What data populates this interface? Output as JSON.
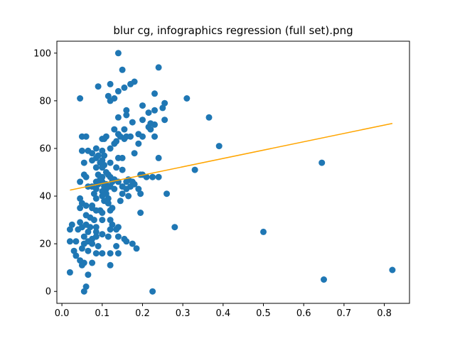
{
  "chart_data": {
    "type": "scatter",
    "title": "blur cg, infographics regression (full set).png",
    "xlabel": "",
    "ylabel": "",
    "xlim": [
      -0.0125,
      0.8625
    ],
    "ylim": [
      -5,
      105
    ],
    "xticks": [
      0.0,
      0.1,
      0.2,
      0.3,
      0.4,
      0.5,
      0.6,
      0.7,
      0.8
    ],
    "xtick_labels": [
      "0.0",
      "0.1",
      "0.2",
      "0.3",
      "0.4",
      "0.5",
      "0.6",
      "0.7",
      "0.8"
    ],
    "yticks": [
      0,
      20,
      40,
      60,
      80,
      100
    ],
    "ytick_labels": [
      "0",
      "20",
      "40",
      "60",
      "80",
      "100"
    ],
    "grid": false,
    "colors": {
      "points": "#1f77b4",
      "regression_line": "#ffa500"
    },
    "regression_line": {
      "x": [
        0.02,
        0.82
      ],
      "y": [
        42.5,
        70.5
      ]
    },
    "points": [
      [
        0.14,
        100
      ],
      [
        0.15,
        93
      ],
      [
        0.24,
        94
      ],
      [
        0.18,
        88
      ],
      [
        0.09,
        86
      ],
      [
        0.12,
        87
      ],
      [
        0.17,
        87
      ],
      [
        0.155,
        85.5
      ],
      [
        0.14,
        84
      ],
      [
        0.23,
        83
      ],
      [
        0.045,
        81
      ],
      [
        0.115,
        82
      ],
      [
        0.12,
        80
      ],
      [
        0.13,
        81
      ],
      [
        0.31,
        81
      ],
      [
        0.255,
        79
      ],
      [
        0.2,
        78
      ],
      [
        0.25,
        77
      ],
      [
        0.16,
        76
      ],
      [
        0.23,
        76
      ],
      [
        0.215,
        75
      ],
      [
        0.16,
        74
      ],
      [
        0.14,
        73
      ],
      [
        0.365,
        73
      ],
      [
        0.2,
        72
      ],
      [
        0.255,
        72
      ],
      [
        0.175,
        71
      ],
      [
        0.22,
        70.5
      ],
      [
        0.23,
        70
      ],
      [
        0.215,
        69
      ],
      [
        0.13,
        68
      ],
      [
        0.155,
        68
      ],
      [
        0.22,
        68
      ],
      [
        0.05,
        65
      ],
      [
        0.06,
        65
      ],
      [
        0.14,
        66
      ],
      [
        0.16,
        65
      ],
      [
        0.17,
        65
      ],
      [
        0.19,
        66
      ],
      [
        0.2,
        65
      ],
      [
        0.23,
        65
      ],
      [
        0.1,
        64
      ],
      [
        0.105,
        64
      ],
      [
        0.11,
        65
      ],
      [
        0.145,
        65
      ],
      [
        0.155,
        64
      ],
      [
        0.13,
        62
      ],
      [
        0.19,
        62
      ],
      [
        0.135,
        63
      ],
      [
        0.39,
        61
      ],
      [
        0.05,
        59
      ],
      [
        0.065,
        59
      ],
      [
        0.085,
        60
      ],
      [
        0.1,
        59
      ],
      [
        0.12,
        60
      ],
      [
        0.075,
        58
      ],
      [
        0.09,
        57
      ],
      [
        0.105,
        57
      ],
      [
        0.18,
        58
      ],
      [
        0.085,
        56
      ],
      [
        0.1,
        55
      ],
      [
        0.14,
        56
      ],
      [
        0.15,
        56
      ],
      [
        0.24,
        56
      ],
      [
        0.055,
        54
      ],
      [
        0.075,
        55
      ],
      [
        0.095,
        54
      ],
      [
        0.105,
        53
      ],
      [
        0.12,
        54
      ],
      [
        0.645,
        54
      ],
      [
        0.085,
        52
      ],
      [
        0.1,
        52
      ],
      [
        0.11,
        50
      ],
      [
        0.135,
        52
      ],
      [
        0.15,
        51
      ],
      [
        0.33,
        51
      ],
      [
        0.055,
        49
      ],
      [
        0.06,
        48
      ],
      [
        0.09,
        49
      ],
      [
        0.1,
        48
      ],
      [
        0.115,
        49
      ],
      [
        0.12,
        48
      ],
      [
        0.095,
        47
      ],
      [
        0.13,
        47
      ],
      [
        0.165,
        47
      ],
      [
        0.195,
        49
      ],
      [
        0.2,
        49
      ],
      [
        0.21,
        48
      ],
      [
        0.225,
        48
      ],
      [
        0.24,
        48
      ],
      [
        0.045,
        46
      ],
      [
        0.085,
        46
      ],
      [
        0.1,
        46
      ],
      [
        0.11,
        45
      ],
      [
        0.125,
        46
      ],
      [
        0.14,
        46
      ],
      [
        0.16,
        46
      ],
      [
        0.175,
        46
      ],
      [
        0.09,
        45
      ],
      [
        0.065,
        44
      ],
      [
        0.075,
        44
      ],
      [
        0.105,
        44
      ],
      [
        0.12,
        44
      ],
      [
        0.15,
        44
      ],
      [
        0.17,
        44
      ],
      [
        0.18,
        45
      ],
      [
        0.085,
        43
      ],
      [
        0.1,
        42
      ],
      [
        0.11,
        43
      ],
      [
        0.13,
        43
      ],
      [
        0.16,
        43
      ],
      [
        0.19,
        43
      ],
      [
        0.08,
        41
      ],
      [
        0.1,
        40
      ],
      [
        0.11,
        41
      ],
      [
        0.15,
        41
      ],
      [
        0.165,
        40
      ],
      [
        0.195,
        41
      ],
      [
        0.26,
        41
      ],
      [
        0.045,
        39
      ],
      [
        0.085,
        39
      ],
      [
        0.115,
        39
      ],
      [
        0.05,
        37
      ],
      [
        0.06,
        36
      ],
      [
        0.075,
        36
      ],
      [
        0.105,
        38
      ],
      [
        0.115,
        37
      ],
      [
        0.145,
        38
      ],
      [
        0.075,
        35
      ],
      [
        0.095,
        34
      ],
      [
        0.12,
        34
      ],
      [
        0.045,
        35
      ],
      [
        0.06,
        32
      ],
      [
        0.07,
        31
      ],
      [
        0.08,
        30
      ],
      [
        0.085,
        34
      ],
      [
        0.1,
        33
      ],
      [
        0.125,
        35
      ],
      [
        0.195,
        33
      ],
      [
        0.025,
        28
      ],
      [
        0.045,
        29
      ],
      [
        0.06,
        28
      ],
      [
        0.07,
        27
      ],
      [
        0.085,
        27
      ],
      [
        0.1,
        30
      ],
      [
        0.12,
        30
      ],
      [
        0.125,
        28
      ],
      [
        0.14,
        27
      ],
      [
        0.28,
        27
      ],
      [
        0.02,
        26
      ],
      [
        0.04,
        26
      ],
      [
        0.05,
        27
      ],
      [
        0.065,
        25
      ],
      [
        0.085,
        25
      ],
      [
        0.1,
        24
      ],
      [
        0.12,
        26
      ],
      [
        0.135,
        26
      ],
      [
        0.5,
        25
      ],
      [
        0.055,
        23
      ],
      [
        0.065,
        21
      ],
      [
        0.075,
        22
      ],
      [
        0.085,
        23
      ],
      [
        0.1,
        24
      ],
      [
        0.115,
        23
      ],
      [
        0.14,
        23
      ],
      [
        0.155,
        22
      ],
      [
        0.16,
        21
      ],
      [
        0.02,
        21
      ],
      [
        0.035,
        21
      ],
      [
        0.055,
        20
      ],
      [
        0.075,
        20
      ],
      [
        0.09,
        19
      ],
      [
        0.135,
        19
      ],
      [
        0.175,
        20
      ],
      [
        0.185,
        18
      ],
      [
        0.03,
        17
      ],
      [
        0.05,
        18
      ],
      [
        0.065,
        17
      ],
      [
        0.085,
        16
      ],
      [
        0.1,
        16
      ],
      [
        0.12,
        16
      ],
      [
        0.14,
        16
      ],
      [
        0.035,
        15
      ],
      [
        0.045,
        13
      ],
      [
        0.055,
        12
      ],
      [
        0.075,
        12
      ],
      [
        0.12,
        11
      ],
      [
        0.05,
        11
      ],
      [
        0.065,
        7
      ],
      [
        0.82,
        9
      ],
      [
        0.02,
        8
      ],
      [
        0.06,
        2
      ],
      [
        0.055,
        0
      ],
      [
        0.225,
        0
      ],
      [
        0.65,
        5
      ]
    ]
  }
}
